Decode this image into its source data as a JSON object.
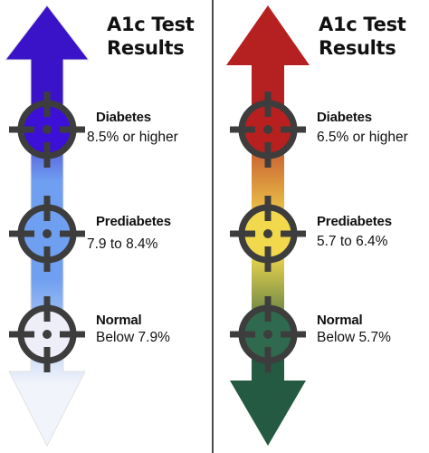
{
  "left_panel": {
    "title": "A1c Test\nResults",
    "colors": {
      "arrow_top": "#3a13c9",
      "arrow_mid": "#6f9ff0",
      "arrow_bottom": "#f2f4fb",
      "marker_diabetes": "#3c10d6",
      "marker_prediabetes": "#6f9ff0",
      "marker_normal": "#eeeef8"
    },
    "levels": [
      {
        "name": "Diabetes",
        "range": "8.5% or higher"
      },
      {
        "name": "Prediabetes",
        "range": "7.9 to 8.4%"
      },
      {
        "name": "Normal",
        "range": "Below 7.9%"
      }
    ]
  },
  "right_panel": {
    "title": "A1c Test\nResults",
    "colors": {
      "arrow_top": "#b52121",
      "arrow_mid": "#f2d94e",
      "arrow_bottom": "#245a41",
      "marker_diabetes": "#b82020",
      "marker_prediabetes": "#f1d84c",
      "marker_normal": "#2f6a4e"
    },
    "levels": [
      {
        "name": "Diabetes",
        "range": "6.5% or higher"
      },
      {
        "name": "Prediabetes",
        "range": "5.7 to 6.4%"
      },
      {
        "name": "Normal",
        "range": "Below 5.7%"
      }
    ]
  },
  "icons": {
    "marker": "crosshair-target-icon",
    "arrow": "double-headed-arrow"
  }
}
